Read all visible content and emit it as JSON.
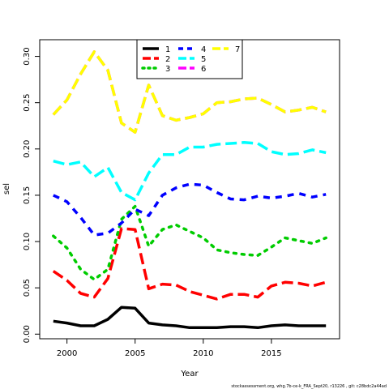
{
  "chart_data": {
    "type": "line",
    "xlabel": "Year",
    "ylabel": "sel",
    "xlim": [
      1998,
      2020
    ],
    "ylim": [
      -0.005,
      0.318
    ],
    "x_ticks": [
      2000,
      2005,
      2010,
      2015
    ],
    "y_ticks": [
      0.0,
      0.05,
      0.1,
      0.15,
      0.2,
      0.25,
      0.3
    ],
    "y_tick_labels": [
      "0.00",
      "0.05",
      "0.10",
      "0.15",
      "0.20",
      "0.25",
      "0.30"
    ],
    "legend_position": "top-center",
    "x": [
      1999,
      2000,
      2001,
      2002,
      2003,
      2004,
      2005,
      2006,
      2007,
      2008,
      2009,
      2010,
      2011,
      2012,
      2013,
      2014,
      2015,
      2016,
      2017,
      2018,
      2019
    ],
    "series": [
      {
        "name": "1",
        "color": "#000000",
        "dash": "solid",
        "values": [
          0.014,
          0.012,
          0.009,
          0.009,
          0.016,
          0.029,
          0.028,
          0.012,
          0.01,
          0.009,
          0.007,
          0.007,
          0.007,
          0.008,
          0.008,
          0.007,
          0.009,
          0.01,
          0.009,
          0.009,
          0.009
        ]
      },
      {
        "name": "2",
        "color": "#ff0000",
        "dash": "long",
        "values": [
          0.068,
          0.058,
          0.044,
          0.04,
          0.06,
          0.114,
          0.113,
          0.049,
          0.054,
          0.053,
          0.046,
          0.042,
          0.038,
          0.043,
          0.043,
          0.04,
          0.052,
          0.056,
          0.055,
          0.052,
          0.056
        ]
      },
      {
        "name": "3",
        "color": "#00cc00",
        "dash": "dot",
        "values": [
          0.106,
          0.093,
          0.07,
          0.059,
          0.07,
          0.124,
          0.138,
          0.095,
          0.113,
          0.118,
          0.111,
          0.104,
          0.091,
          0.088,
          0.086,
          0.085,
          0.094,
          0.104,
          0.101,
          0.098,
          0.104
        ]
      },
      {
        "name": "4",
        "color": "#0000ff",
        "dash": "dash",
        "values": [
          0.15,
          0.143,
          0.126,
          0.107,
          0.109,
          0.12,
          0.135,
          0.128,
          0.15,
          0.158,
          0.162,
          0.161,
          0.153,
          0.146,
          0.145,
          0.149,
          0.147,
          0.149,
          0.152,
          0.148,
          0.151
        ]
      },
      {
        "name": "5",
        "color": "#00ffff",
        "dash": "long",
        "values": [
          0.187,
          0.183,
          0.186,
          0.17,
          0.18,
          0.153,
          0.145,
          0.174,
          0.194,
          0.194,
          0.202,
          0.202,
          0.205,
          0.206,
          0.207,
          0.206,
          0.197,
          0.194,
          0.195,
          0.199,
          0.196
        ]
      },
      {
        "name": "6",
        "color": "#ff00ff",
        "dash": "long",
        "values": [
          0.237,
          0.253,
          0.281,
          0.305,
          0.285,
          0.228,
          0.218,
          0.269,
          0.236,
          0.231,
          0.234,
          0.238,
          0.25,
          0.251,
          0.254,
          0.255,
          0.248,
          0.24,
          0.242,
          0.245,
          0.24
        ]
      },
      {
        "name": "7",
        "color": "#ffff00",
        "dash": "long",
        "values": [
          0.237,
          0.253,
          0.281,
          0.305,
          0.285,
          0.228,
          0.218,
          0.269,
          0.236,
          0.231,
          0.234,
          0.238,
          0.25,
          0.251,
          0.254,
          0.255,
          0.248,
          0.24,
          0.242,
          0.245,
          0.24
        ]
      }
    ]
  },
  "credit": "stockassessment.org, whg.7b-ce-k_FRA_Sept20, r13226 ,  git: c28bdc2a44ad"
}
